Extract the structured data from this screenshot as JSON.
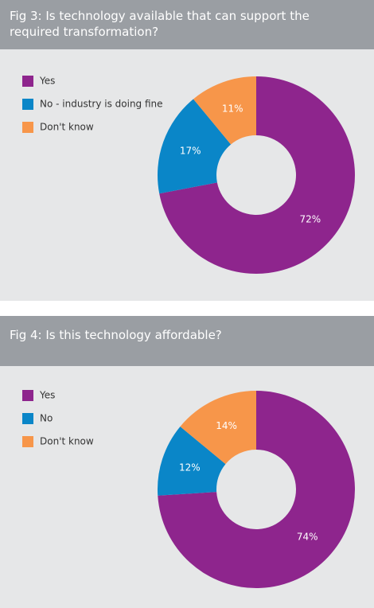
{
  "chart_data": [
    {
      "type": "donut",
      "title": "Fig 3: Is technology available that can support the required transformation?",
      "categories": [
        "Yes",
        "No - industry is doing fine",
        "Don't know"
      ],
      "values": [
        72,
        17,
        11
      ],
      "value_labels": [
        "72%",
        "17%",
        "11%"
      ],
      "colors": [
        "#8e258d",
        "#0a86c8",
        "#f7964a"
      ]
    },
    {
      "type": "donut",
      "title": "Fig 4: Is this technology affordable?",
      "categories": [
        "Yes",
        "No",
        "Don't know"
      ],
      "values": [
        74,
        12,
        14
      ],
      "value_labels": [
        "74%",
        "12%",
        "14%"
      ],
      "colors": [
        "#8e258d",
        "#0a86c8",
        "#f7964a"
      ]
    }
  ]
}
